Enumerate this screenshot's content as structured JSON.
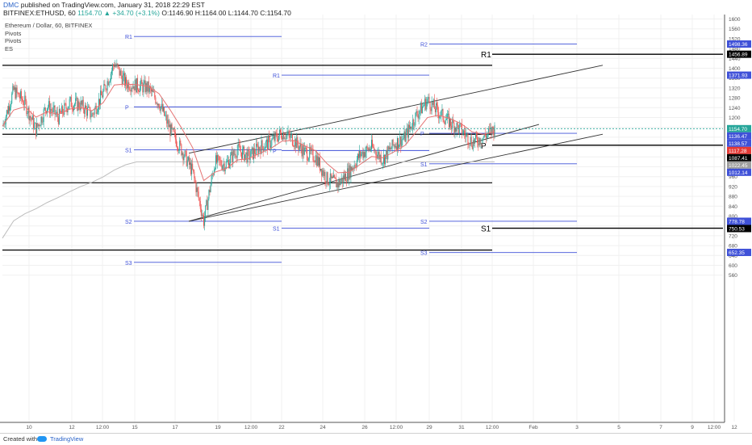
{
  "header": {
    "author": "DMC",
    "published": "published on TradingView.com, January 31, 2018 22:29 EST",
    "symbol": "BITFINEX:ETHUSD, 60",
    "change": "1154.70 ▲ +34.70 (+3.1%)",
    "ohlc": "O:1146.90 H:1164.00 L:1144.70 C:1154.70"
  },
  "legend": {
    "title": "Ethereum / Dollar, 60, BITFINEX",
    "items": [
      "Pivots",
      "Pivots",
      "ES"
    ]
  },
  "footer": {
    "created_with": "Created with",
    "brand": "TradingView"
  },
  "colors": {
    "up": "#26a69a",
    "down": "#ef5350",
    "pivot_blue": "#3f51d8",
    "pivot_black": "#000000",
    "ma_red": "#e57373",
    "ma_grey": "#bdbdbd",
    "price_line": "#26a69a"
  },
  "chart_data": {
    "type": "candlestick",
    "title": "Ethereum / Dollar, 60, BITFINEX",
    "x_tick_labels": [
      "10",
      "12",
      "12:00",
      "15",
      "17",
      "19",
      "12:00",
      "22",
      "24",
      "26",
      "12:00",
      "29",
      "31",
      "12:00",
      "Feb",
      "3",
      "5",
      "7",
      "9",
      "12:00",
      "12"
    ],
    "y_tick_labels": [
      1600,
      1560,
      1520,
      1480,
      1440,
      1400,
      1360,
      1320,
      1280,
      1240,
      1200,
      1160,
      1120,
      1080,
      1040,
      1000,
      960,
      920,
      880,
      840,
      800,
      760,
      720,
      680,
      640,
      600,
      560
    ],
    "ylim": [
      540,
      1610
    ],
    "price_series": {
      "description": "Hourly ETHUSD price path (approximate, read from chart)",
      "points": [
        [
          0,
          1165
        ],
        [
          1,
          1310
        ],
        [
          2,
          1260
        ],
        [
          3,
          1150
        ],
        [
          4,
          1250
        ],
        [
          5,
          1200
        ],
        [
          6,
          1260
        ],
        [
          7,
          1250
        ],
        [
          8,
          1210
        ],
        [
          9,
          1300
        ],
        [
          10,
          1420
        ],
        [
          11,
          1340
        ],
        [
          12,
          1330
        ],
        [
          13,
          1320
        ],
        [
          14,
          1260
        ],
        [
          15,
          1150
        ],
        [
          16,
          1070
        ],
        [
          17,
          980
        ],
        [
          18,
          780
        ],
        [
          19,
          1020
        ],
        [
          20,
          1010
        ],
        [
          21,
          1070
        ],
        [
          22,
          1040
        ],
        [
          23,
          1080
        ],
        [
          24,
          1100
        ],
        [
          25,
          1140
        ],
        [
          26,
          1110
        ],
        [
          27,
          1060
        ],
        [
          28,
          1040
        ],
        [
          29,
          950
        ],
        [
          30,
          930
        ],
        [
          31,
          980
        ],
        [
          32,
          1050
        ],
        [
          33,
          1080
        ],
        [
          34,
          1030
        ],
        [
          35,
          1090
        ],
        [
          36,
          1120
        ],
        [
          37,
          1210
        ],
        [
          38,
          1270
        ],
        [
          39,
          1220
        ],
        [
          40,
          1180
        ],
        [
          41,
          1150
        ],
        [
          42,
          1100
        ],
        [
          43,
          1120
        ],
        [
          44,
          1154.7
        ]
      ]
    },
    "pivot_levels_weekly": [
      {
        "label": "R1",
        "value": 1529,
        "segment": "wk1"
      },
      {
        "label": "P",
        "value": 1243,
        "segment": "wk1"
      },
      {
        "label": "S1",
        "value": 1069,
        "segment": "wk1"
      },
      {
        "label": "S2",
        "value": 779,
        "segment": "wk1"
      },
      {
        "label": "S3",
        "value": 612,
        "segment": "wk1"
      },
      {
        "label": "R1",
        "value": 1372,
        "segment": "wk2"
      },
      {
        "label": "P",
        "value": 1066,
        "segment": "wk2"
      },
      {
        "label": "S1",
        "value": 751,
        "segment": "wk2"
      },
      {
        "label": "R2",
        "value": 1498,
        "segment": "wk3"
      },
      {
        "label": "P",
        "value": 1136,
        "segment": "wk3"
      },
      {
        "label": "S1",
        "value": 1012,
        "segment": "wk3"
      },
      {
        "label": "S2",
        "value": 779,
        "segment": "wk3"
      },
      {
        "label": "S3",
        "value": 652,
        "segment": "wk3"
      }
    ],
    "pivot_levels_monthly": [
      {
        "label": "R1",
        "value": 1456.89
      },
      {
        "label": "P",
        "value": 1087.41
      },
      {
        "label": "S1",
        "value": 750.53
      }
    ],
    "horizontal_lines": [
      1412,
      1132,
      935,
      662
    ],
    "channel_lines": [
      {
        "from": [
          18,
          1055
        ],
        "to": [
          46,
          1412
        ]
      },
      {
        "from": [
          18,
          779
        ],
        "to": [
          46,
          1172
        ]
      },
      {
        "from": [
          18,
          779
        ],
        "to": [
          46,
          1132
        ]
      }
    ],
    "price_scale_labels": [
      {
        "value": "1498.36",
        "bg": "#3f51d8"
      },
      {
        "value": "1456.89",
        "bg": "#000000"
      },
      {
        "value": "1371.93",
        "bg": "#3f51d8"
      },
      {
        "value": "1154.70",
        "bg": "#26a69a"
      },
      {
        "value": "1136.47",
        "bg": "#3f51d8"
      },
      {
        "value": "1138.57",
        "bg": "#3f51d8"
      },
      {
        "value": "1117.28",
        "bg": "#e53935"
      },
      {
        "value": "1087.41",
        "bg": "#000000"
      },
      {
        "value": "1022.45",
        "bg": "#9e9e9e"
      },
      {
        "value": "1012.14",
        "bg": "#3f51d8"
      },
      {
        "value": "778.78",
        "bg": "#3f51d8"
      },
      {
        "value": "750.53",
        "bg": "#000000"
      },
      {
        "value": "652.35",
        "bg": "#3f51d8"
      }
    ]
  }
}
